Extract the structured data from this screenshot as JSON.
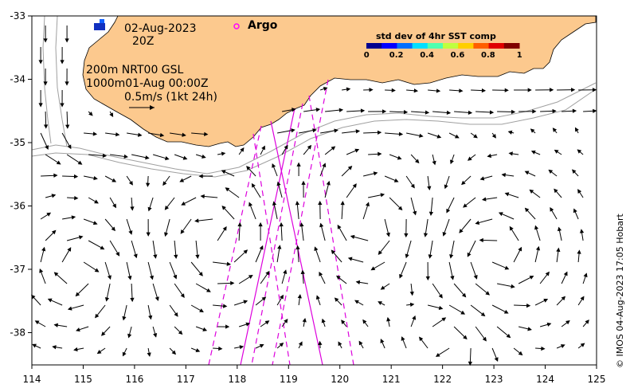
{
  "map": {
    "date": "02-Aug-2023",
    "hour": "20Z",
    "legend_label": "Argo",
    "depth_line1": "200m  NRT00 GSL",
    "depth_line2": "1000m01-Aug 00:00Z",
    "scale_label": "0.5m/s (1kt 24h)",
    "side_label": "© IMOS 04-Aug-2023 17:05 Hobart",
    "colorbar": {
      "title": "std dev of 4hr SST comp",
      "ticks": [
        "0",
        "0.2",
        "0.4",
        "0.6",
        "0.8",
        "1"
      ],
      "colors": [
        "#00008f",
        "#0000ff",
        "#006fff",
        "#00dfff",
        "#4fffaf",
        "#bfff3f",
        "#ffcf00",
        "#ff5f00",
        "#df0000",
        "#800000"
      ]
    },
    "x_ticks": [
      "114",
      "115",
      "116",
      "117",
      "118",
      "119",
      "120",
      "121",
      "122",
      "123",
      "124",
      "125"
    ],
    "y_ticks": [
      "-33",
      "-34",
      "-35",
      "-36",
      "-37",
      "-38"
    ],
    "colors": {
      "land": "#fcc98e",
      "track": "#dd00dd",
      "isobath": "#a0a0a0",
      "argo": "#ff00ff"
    }
  }
}
